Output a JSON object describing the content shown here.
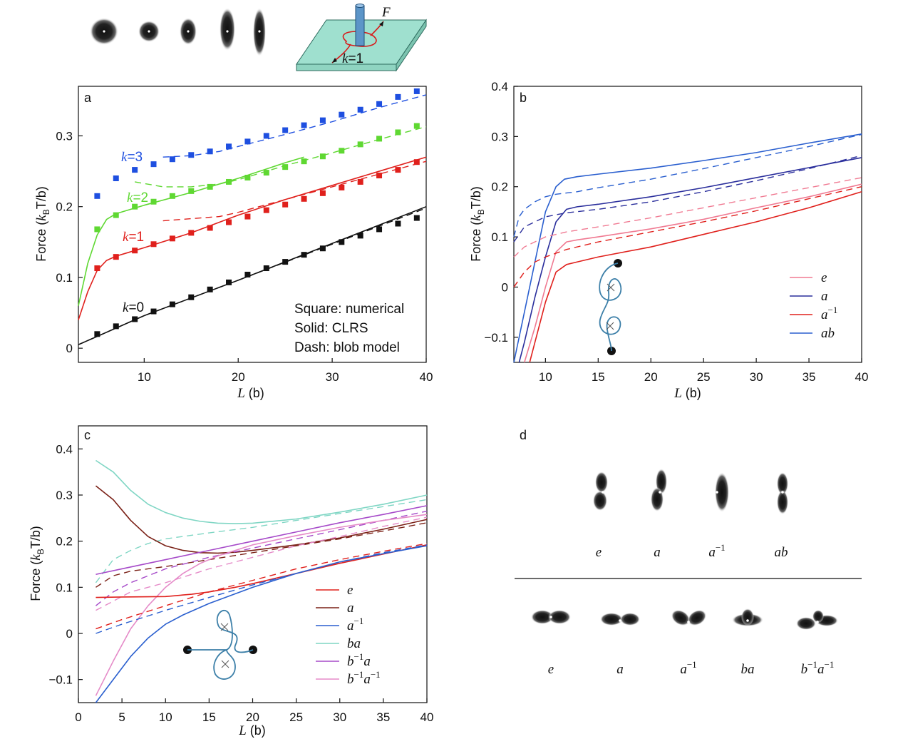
{
  "chart_data": [
    {
      "id": "a",
      "type": "line",
      "panel_label": "a",
      "xlabel_var": "L",
      "xlabel_unit": "(b)",
      "ylabel_prefix": "Force (",
      "ylabel_k": "k",
      "ylabel_sub": "B",
      "ylabel_suffix": "T/b)",
      "xlim": [
        3,
        40
      ],
      "ylim": [
        -0.02,
        0.37
      ],
      "xticks": [
        10,
        20,
        30,
        40
      ],
      "yticks": [
        0,
        0.1,
        0.2,
        0.3
      ],
      "annotations": [
        "Square: numerical",
        "Solid: CLRS",
        "Dash: blob model"
      ],
      "series": [
        {
          "name": "k=0",
          "k_var": "k",
          "k_val": "=0",
          "color": "#111111",
          "points_x": [
            5,
            7,
            9,
            11,
            13,
            15,
            17,
            19,
            21,
            23,
            25,
            27,
            29,
            31,
            33,
            35,
            37,
            39
          ],
          "points_y": [
            0.02,
            0.031,
            0.041,
            0.052,
            0.062,
            0.072,
            0.083,
            0.093,
            0.104,
            0.113,
            0.122,
            0.132,
            0.141,
            0.15,
            0.159,
            0.168,
            0.176,
            0.184
          ],
          "solid_x": [
            3,
            10,
            20,
            30,
            40
          ],
          "solid_y": [
            0.005,
            0.046,
            0.096,
            0.148,
            0.2
          ],
          "dash_x": [
            3,
            10,
            20,
            30,
            40
          ],
          "dash_y": [
            0.005,
            0.046,
            0.096,
            0.147,
            0.198
          ]
        },
        {
          "name": "k=1",
          "k_var": "k",
          "k_val": "=1",
          "color": "#e0201c",
          "points_x": [
            5,
            7,
            9,
            11,
            13,
            15,
            17,
            19,
            21,
            23,
            25,
            27,
            29,
            31,
            33,
            35,
            37,
            39
          ],
          "points_y": [
            0.113,
            0.129,
            0.138,
            0.147,
            0.155,
            0.163,
            0.17,
            0.178,
            0.186,
            0.195,
            0.203,
            0.211,
            0.219,
            0.227,
            0.235,
            0.244,
            0.252,
            0.263
          ],
          "solid_x": [
            3,
            4,
            5,
            6,
            7,
            8,
            10,
            15,
            20,
            25,
            30,
            35,
            40
          ],
          "solid_y": [
            0.04,
            0.08,
            0.11,
            0.124,
            0.13,
            0.134,
            0.142,
            0.163,
            0.188,
            0.21,
            0.23,
            0.25,
            0.27
          ],
          "dash_x": [
            12,
            15,
            18,
            20,
            25,
            30,
            35,
            40
          ],
          "dash_y": [
            0.18,
            0.183,
            0.186,
            0.192,
            0.21,
            0.228,
            0.246,
            0.264
          ]
        },
        {
          "name": "k=2",
          "k_var": "k",
          "k_val": "=2",
          "color": "#5fd832",
          "points_x": [
            5,
            7,
            9,
            11,
            13,
            15,
            17,
            19,
            21,
            23,
            25,
            27,
            29,
            31,
            33,
            35,
            37,
            39
          ],
          "points_y": [
            0.168,
            0.188,
            0.2,
            0.207,
            0.215,
            0.222,
            0.228,
            0.235,
            0.241,
            0.248,
            0.256,
            0.264,
            0.271,
            0.279,
            0.288,
            0.296,
            0.305,
            0.314
          ],
          "solid_x": [
            3,
            4,
            5,
            6,
            7,
            8,
            10,
            15,
            20,
            25,
            27
          ],
          "solid_y": [
            0.06,
            0.12,
            0.16,
            0.182,
            0.19,
            0.194,
            0.202,
            0.22,
            0.24,
            0.262,
            0.27
          ],
          "dash_x": [
            9,
            12,
            15,
            18,
            20,
            25,
            30,
            35,
            40
          ],
          "dash_y": [
            0.235,
            0.228,
            0.228,
            0.232,
            0.238,
            0.258,
            0.276,
            0.295,
            0.313
          ]
        },
        {
          "name": "k=3",
          "k_var": "k",
          "k_val": "=3",
          "color": "#1e4fe0",
          "points_x": [
            5,
            7,
            9,
            11,
            13,
            15,
            17,
            19,
            21,
            23,
            25,
            27,
            29,
            31,
            33,
            35,
            37,
            39
          ],
          "points_y": [
            0.215,
            0.24,
            0.252,
            0.26,
            0.267,
            0.273,
            0.278,
            0.285,
            0.292,
            0.3,
            0.308,
            0.315,
            0.322,
            0.33,
            0.337,
            0.345,
            0.355,
            0.363
          ],
          "solid_x": [],
          "solid_y": [],
          "dash_x": [
            12,
            15,
            18,
            20,
            25,
            30,
            35,
            40
          ],
          "dash_y": [
            0.27,
            0.272,
            0.278,
            0.285,
            0.302,
            0.32,
            0.34,
            0.358
          ]
        }
      ]
    },
    {
      "id": "b",
      "type": "line",
      "panel_label": "b",
      "xlabel_var": "L",
      "xlabel_unit": "(b)",
      "ylabel_prefix": "Force (",
      "ylabel_k": "k",
      "ylabel_sub": "B",
      "ylabel_suffix": "T/b)",
      "xlim": [
        7,
        40
      ],
      "ylim": [
        -0.15,
        0.4
      ],
      "xticks": [
        10,
        15,
        20,
        25,
        30,
        35,
        40
      ],
      "yticks": [
        -0.1,
        0,
        0.1,
        0.2,
        0.3,
        0.4
      ],
      "legend": [
        {
          "var": "e",
          "sup": "",
          "color": "#f07a92"
        },
        {
          "var": "a",
          "sup": "",
          "color": "#2a2e9c"
        },
        {
          "var": "a",
          "sup": "−1",
          "color": "#e0201c"
        },
        {
          "var": "ab",
          "sup": "",
          "color": "#2a5fcf"
        }
      ],
      "series": [
        {
          "name": "ab",
          "color": "#2a5fcf",
          "solid_x": [
            7,
            8,
            9,
            10,
            11,
            11.8,
            13,
            15,
            20,
            25,
            30,
            35,
            40
          ],
          "solid_y": [
            -0.15,
            -0.05,
            0.05,
            0.15,
            0.2,
            0.215,
            0.22,
            0.225,
            0.237,
            0.252,
            0.268,
            0.287,
            0.305
          ],
          "dash_x": [
            7,
            7.5,
            8,
            9,
            10,
            11,
            13,
            15,
            20,
            25,
            30,
            35,
            40
          ],
          "dash_y": [
            0.1,
            0.14,
            0.155,
            0.17,
            0.18,
            0.185,
            0.19,
            0.198,
            0.215,
            0.236,
            0.258,
            0.28,
            0.304
          ]
        },
        {
          "name": "a",
          "color": "#2a2e9c",
          "solid_x": [
            7.5,
            8,
            9,
            10,
            11,
            12,
            13,
            15,
            20,
            25,
            30,
            35,
            40
          ],
          "solid_y": [
            -0.15,
            -0.11,
            -0.02,
            0.06,
            0.13,
            0.155,
            0.16,
            0.165,
            0.18,
            0.198,
            0.218,
            0.238,
            0.258
          ],
          "dash_x": [
            7,
            8,
            10,
            12,
            15,
            20,
            25,
            30,
            35,
            40
          ],
          "dash_y": [
            0.09,
            0.12,
            0.14,
            0.148,
            0.155,
            0.17,
            0.19,
            0.212,
            0.236,
            0.262
          ]
        },
        {
          "name": "e",
          "color": "#f07a92",
          "solid_x": [
            8,
            9,
            10,
            11,
            12,
            13,
            15,
            20,
            25,
            30,
            35,
            40
          ],
          "solid_y": [
            -0.15,
            -0.08,
            0.0,
            0.07,
            0.09,
            0.094,
            0.1,
            0.116,
            0.135,
            0.158,
            0.18,
            0.205
          ],
          "dash_x": [
            7,
            8,
            10,
            12,
            15,
            20,
            25,
            30,
            35,
            40
          ],
          "dash_y": [
            0.06,
            0.08,
            0.1,
            0.11,
            0.12,
            0.138,
            0.158,
            0.178,
            0.198,
            0.218
          ]
        },
        {
          "name": "a^-1",
          "color": "#e0201c",
          "solid_x": [
            8.5,
            9,
            10,
            11,
            12,
            13,
            15,
            20,
            25,
            30,
            35,
            40
          ],
          "solid_y": [
            -0.15,
            -0.11,
            -0.03,
            0.03,
            0.045,
            0.05,
            0.06,
            0.08,
            0.105,
            0.13,
            0.158,
            0.19
          ],
          "dash_x": [
            7,
            8,
            9,
            10,
            12,
            15,
            20,
            25,
            30,
            35,
            40
          ],
          "dash_y": [
            0.0,
            0.03,
            0.05,
            0.06,
            0.075,
            0.09,
            0.11,
            0.13,
            0.152,
            0.176,
            0.2
          ]
        }
      ]
    },
    {
      "id": "c",
      "type": "line",
      "panel_label": "c",
      "xlabel_var": "L",
      "xlabel_unit": "(b)",
      "ylabel_prefix": "Force (",
      "ylabel_k": "k",
      "ylabel_sub": "B",
      "ylabel_suffix": "T/b)",
      "xlim": [
        0,
        40
      ],
      "ylim": [
        -0.15,
        0.45
      ],
      "xticks": [
        0,
        5,
        10,
        15,
        20,
        25,
        30,
        35,
        40
      ],
      "yticks": [
        -0.1,
        0,
        0.1,
        0.2,
        0.3,
        0.4
      ],
      "legend": [
        {
          "var": "e",
          "pre": "",
          "presup": "",
          "sup": "",
          "color": "#e0201c"
        },
        {
          "var": "a",
          "pre": "",
          "presup": "",
          "sup": "",
          "color": "#7a2016"
        },
        {
          "var": "a",
          "pre": "",
          "presup": "",
          "sup": "−1",
          "color": "#2a5fcf"
        },
        {
          "var": "ba",
          "pre": "",
          "presup": "",
          "sup": "",
          "color": "#7fd6c4"
        },
        {
          "var": "a",
          "pre": "b",
          "presup": "−1",
          "sup": "",
          "color": "#a64ac9"
        },
        {
          "var": "a",
          "pre": "b",
          "presup": "−1",
          "sup": "−1",
          "color": "#e58ac8"
        }
      ],
      "series": [
        {
          "name": "ba",
          "color": "#7fd6c4",
          "solid_x": [
            2,
            4,
            6,
            8,
            10,
            12,
            14,
            16,
            18,
            20,
            25,
            30,
            35,
            40
          ],
          "solid_y": [
            0.375,
            0.35,
            0.31,
            0.28,
            0.262,
            0.25,
            0.243,
            0.239,
            0.238,
            0.239,
            0.248,
            0.263,
            0.28,
            0.3
          ],
          "dash_x": [
            2,
            4,
            6,
            8,
            10,
            15,
            20,
            25,
            30,
            35,
            40
          ],
          "dash_y": [
            0.11,
            0.16,
            0.18,
            0.195,
            0.205,
            0.218,
            0.23,
            0.245,
            0.26,
            0.275,
            0.29
          ]
        },
        {
          "name": "a",
          "color": "#7a2016",
          "solid_x": [
            2,
            4,
            6,
            8,
            10,
            12,
            14,
            16,
            18,
            20,
            25,
            30,
            35,
            40
          ],
          "solid_y": [
            0.32,
            0.29,
            0.245,
            0.21,
            0.19,
            0.18,
            0.175,
            0.174,
            0.176,
            0.18,
            0.192,
            0.207,
            0.226,
            0.247
          ],
          "dash_x": [
            2,
            4,
            6,
            8,
            10,
            15,
            20,
            25,
            30,
            35,
            40
          ],
          "dash_y": [
            0.1,
            0.125,
            0.135,
            0.14,
            0.145,
            0.16,
            0.175,
            0.19,
            0.205,
            0.222,
            0.24
          ]
        },
        {
          "name": "b^-1 a",
          "color": "#a64ac9",
          "solid_x": [
            2,
            5,
            10,
            15,
            20,
            25,
            30,
            35,
            40
          ],
          "solid_y": [
            0.128,
            0.14,
            0.16,
            0.18,
            0.2,
            0.22,
            0.24,
            0.258,
            0.277
          ],
          "dash_x": [
            2,
            4,
            6,
            8,
            10,
            15,
            20,
            25,
            30,
            35,
            40
          ],
          "dash_y": [
            0.06,
            0.09,
            0.11,
            0.125,
            0.14,
            0.165,
            0.185,
            0.205,
            0.225,
            0.245,
            0.265
          ]
        },
        {
          "name": "b^-1 a^-1",
          "color": "#e58ac8",
          "solid_x": [
            2,
            4,
            6,
            8,
            10,
            12,
            14,
            16,
            18,
            20,
            25,
            30,
            35,
            40
          ],
          "solid_y": [
            -0.135,
            -0.06,
            0.01,
            0.06,
            0.1,
            0.13,
            0.152,
            0.168,
            0.18,
            0.192,
            0.212,
            0.23,
            0.245,
            0.258
          ],
          "dash_x": [
            2,
            4,
            6,
            8,
            10,
            15,
            20,
            25,
            30,
            35,
            40
          ],
          "dash_y": [
            0.05,
            0.07,
            0.09,
            0.1,
            0.11,
            0.14,
            0.165,
            0.19,
            0.21,
            0.232,
            0.252
          ]
        },
        {
          "name": "e",
          "color": "#e0201c",
          "solid_x": [
            2,
            5,
            10,
            13,
            15,
            18,
            20,
            25,
            30,
            35,
            40
          ],
          "solid_y": [
            0.078,
            0.079,
            0.08,
            0.085,
            0.09,
            0.1,
            0.108,
            0.13,
            0.152,
            0.172,
            0.192
          ],
          "dash_x": [
            2,
            5,
            10,
            15,
            20,
            25,
            30,
            35,
            40
          ],
          "dash_y": [
            0.01,
            0.03,
            0.06,
            0.09,
            0.115,
            0.14,
            0.16,
            0.178,
            0.195
          ]
        },
        {
          "name": "a^-1",
          "color": "#2a5fcf",
          "solid_x": [
            2,
            4,
            6,
            8,
            10,
            12,
            15,
            20,
            25,
            30,
            35,
            40
          ],
          "solid_y": [
            -0.15,
            -0.1,
            -0.05,
            -0.01,
            0.02,
            0.04,
            0.065,
            0.1,
            0.13,
            0.155,
            0.173,
            0.19
          ],
          "dash_x": [
            2,
            5,
            10,
            15,
            20,
            25,
            30,
            35,
            40
          ],
          "dash_y": [
            0.0,
            0.02,
            0.05,
            0.078,
            0.105,
            0.13,
            0.155,
            0.175,
            0.192
          ]
        }
      ]
    }
  ],
  "top_diagram": {
    "force_label": "F",
    "k_var": "k",
    "k_val": "=1"
  },
  "panel_d": {
    "label": "d",
    "row1": [
      {
        "var": "e",
        "sup": ""
      },
      {
        "var": "a",
        "sup": ""
      },
      {
        "var": "a",
        "sup": "−1"
      },
      {
        "var": "ab",
        "sup": ""
      }
    ],
    "row2": [
      {
        "var": "e",
        "pre": "",
        "presup": "",
        "sup": ""
      },
      {
        "var": "a",
        "pre": "",
        "presup": "",
        "sup": ""
      },
      {
        "var": "a",
        "pre": "",
        "presup": "",
        "sup": "−1"
      },
      {
        "var": "ba",
        "pre": "",
        "presup": "",
        "sup": ""
      },
      {
        "var": "a",
        "pre": "b",
        "presup": "−1",
        "sup": "−1"
      }
    ]
  }
}
